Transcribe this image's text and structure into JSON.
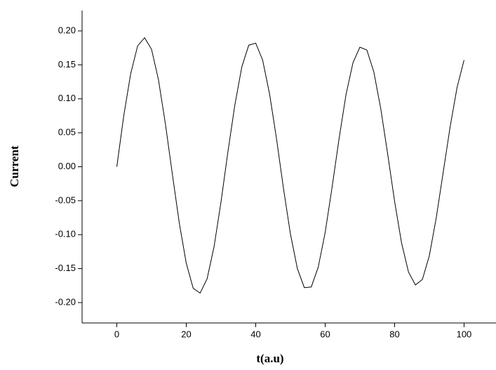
{
  "chart_data": {
    "type": "line",
    "xlabel": "t(a.u)",
    "ylabel": "Current",
    "x": [
      0,
      2,
      4,
      6,
      8,
      10,
      12,
      14,
      16,
      18,
      20,
      22,
      24,
      26,
      28,
      30,
      32,
      34,
      36,
      38,
      40,
      42,
      44,
      46,
      48,
      50,
      52,
      54,
      56,
      58,
      60,
      62,
      64,
      66,
      68,
      70,
      72,
      74,
      76,
      78,
      80,
      82,
      84,
      86,
      88,
      90,
      92,
      94,
      96,
      98,
      100
    ],
    "values": [
      0,
      0.075,
      0.137,
      0.178,
      0.19,
      0.173,
      0.128,
      0.063,
      -0.011,
      -0.083,
      -0.142,
      -0.179,
      -0.186,
      -0.165,
      -0.118,
      -0.052,
      0.022,
      0.091,
      0.147,
      0.179,
      0.182,
      0.157,
      0.107,
      0.041,
      -0.032,
      -0.099,
      -0.15,
      -0.178,
      -0.177,
      -0.148,
      -0.097,
      -0.03,
      0.041,
      0.106,
      0.153,
      0.176,
      0.172,
      0.14,
      0.086,
      0.019,
      -0.051,
      -0.112,
      -0.155,
      -0.174,
      -0.166,
      -0.131,
      -0.075,
      -0.008,
      0.059,
      0.117,
      0.157
    ],
    "color": "#000000",
    "xlim": [
      -10,
      109
    ],
    "xticks": [
      0,
      20,
      40,
      60,
      80,
      100
    ],
    "ylim": [
      -0.23,
      0.23
    ],
    "yticks": [
      {
        "value": -0.2,
        "label": "-0.20"
      },
      {
        "value": -0.15,
        "label": "-0.15"
      },
      {
        "value": -0.1,
        "label": "-0.10"
      },
      {
        "value": -0.05,
        "label": "-0.05"
      },
      {
        "value": 0,
        "label": "0.00"
      },
      {
        "value": 0.05,
        "label": "0.05"
      },
      {
        "value": 0.1,
        "label": "0.10"
      },
      {
        "value": 0.15,
        "label": "0.15"
      },
      {
        "value": 0.2,
        "label": "0.20"
      }
    ]
  }
}
